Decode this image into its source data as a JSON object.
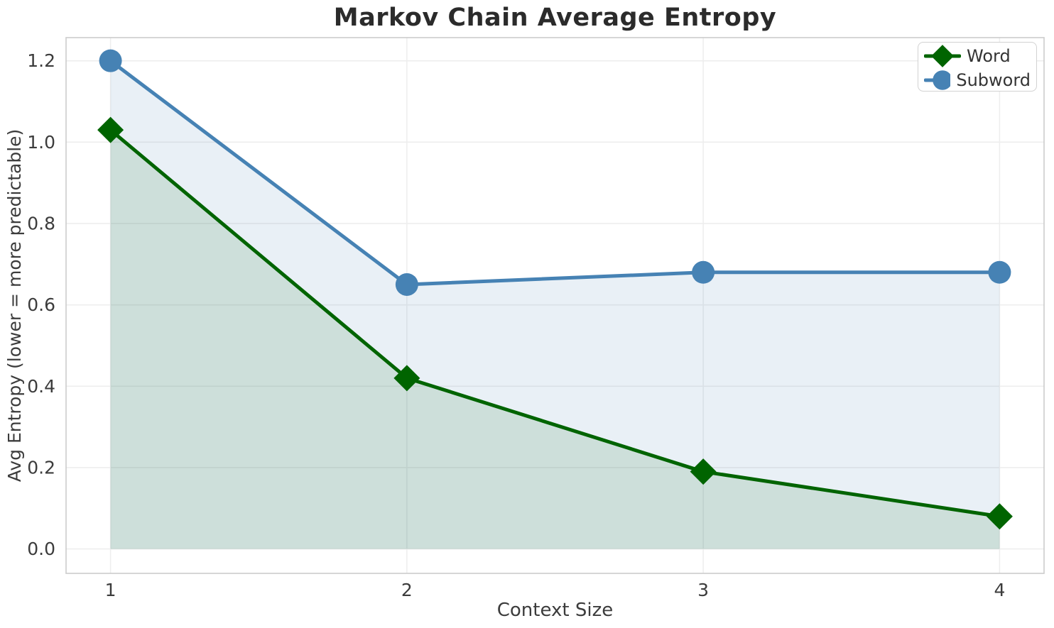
{
  "chart_data": {
    "type": "line",
    "title": "Markov Chain Average Entropy",
    "xlabel": "Context Size",
    "ylabel": "Avg Entropy (lower = more predictable)",
    "x": [
      1,
      2,
      3,
      4
    ],
    "series": [
      {
        "name": "Word",
        "values": [
          1.03,
          0.42,
          0.19,
          0.08
        ],
        "color": "#006400",
        "marker": "diamond"
      },
      {
        "name": "Subword",
        "values": [
          1.2,
          0.65,
          0.68,
          0.68
        ],
        "color": "#4682B4",
        "marker": "circle"
      }
    ],
    "xticks": [
      "1",
      "2",
      "3",
      "4"
    ],
    "yticks": [
      "0.0",
      "0.2",
      "0.4",
      "0.6",
      "0.8",
      "1.0",
      "1.2"
    ],
    "xlim": [
      0.85,
      4.15
    ],
    "ylim": [
      -0.06,
      1.257
    ],
    "grid": true,
    "area_fill": true,
    "fill_opacity": 0.12,
    "legend_position": "upper right"
  },
  "style": {
    "background": "#ffffff",
    "grid_color": "#eeeeee",
    "spine_color": "#cccccc",
    "tick_text_color": "#3c3c3c",
    "line_width": 5,
    "circle_radius": 16,
    "diamond_half": 18.5,
    "tick_font_size": 25
  }
}
